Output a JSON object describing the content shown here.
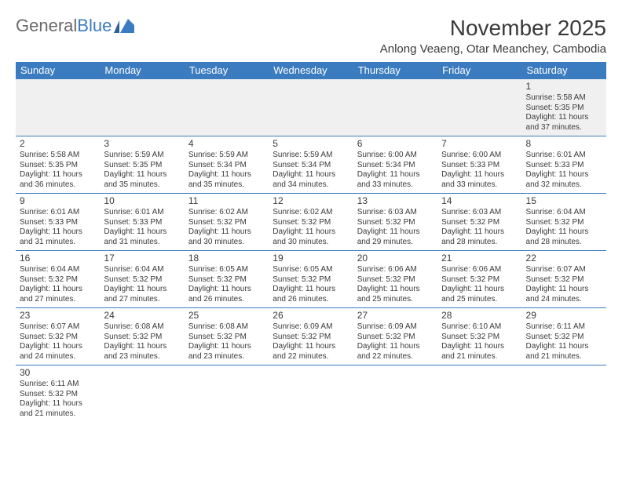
{
  "logo": {
    "text1": "General",
    "text2": "Blue"
  },
  "title": "November 2025",
  "location": "Anlong Veaeng, Otar Meanchey, Cambodia",
  "weekdays": [
    "Sunday",
    "Monday",
    "Tuesday",
    "Wednesday",
    "Thursday",
    "Friday",
    "Saturday"
  ],
  "colors": {
    "header_bg": "#3b7bbf",
    "header_text": "#ffffff",
    "border": "#3b7bbf",
    "first_row_bg": "#f0f0f0",
    "text": "#3a3a3a",
    "logo_gray": "#6a6a6a"
  },
  "weeks": [
    [
      null,
      null,
      null,
      null,
      null,
      null,
      {
        "d": "1",
        "sr": "5:58 AM",
        "ss": "5:35 PM",
        "dl": "11 hours and 37 minutes."
      }
    ],
    [
      {
        "d": "2",
        "sr": "5:58 AM",
        "ss": "5:35 PM",
        "dl": "11 hours and 36 minutes."
      },
      {
        "d": "3",
        "sr": "5:59 AM",
        "ss": "5:35 PM",
        "dl": "11 hours and 35 minutes."
      },
      {
        "d": "4",
        "sr": "5:59 AM",
        "ss": "5:34 PM",
        "dl": "11 hours and 35 minutes."
      },
      {
        "d": "5",
        "sr": "5:59 AM",
        "ss": "5:34 PM",
        "dl": "11 hours and 34 minutes."
      },
      {
        "d": "6",
        "sr": "6:00 AM",
        "ss": "5:34 PM",
        "dl": "11 hours and 33 minutes."
      },
      {
        "d": "7",
        "sr": "6:00 AM",
        "ss": "5:33 PM",
        "dl": "11 hours and 33 minutes."
      },
      {
        "d": "8",
        "sr": "6:01 AM",
        "ss": "5:33 PM",
        "dl": "11 hours and 32 minutes."
      }
    ],
    [
      {
        "d": "9",
        "sr": "6:01 AM",
        "ss": "5:33 PM",
        "dl": "11 hours and 31 minutes."
      },
      {
        "d": "10",
        "sr": "6:01 AM",
        "ss": "5:33 PM",
        "dl": "11 hours and 31 minutes."
      },
      {
        "d": "11",
        "sr": "6:02 AM",
        "ss": "5:32 PM",
        "dl": "11 hours and 30 minutes."
      },
      {
        "d": "12",
        "sr": "6:02 AM",
        "ss": "5:32 PM",
        "dl": "11 hours and 30 minutes."
      },
      {
        "d": "13",
        "sr": "6:03 AM",
        "ss": "5:32 PM",
        "dl": "11 hours and 29 minutes."
      },
      {
        "d": "14",
        "sr": "6:03 AM",
        "ss": "5:32 PM",
        "dl": "11 hours and 28 minutes."
      },
      {
        "d": "15",
        "sr": "6:04 AM",
        "ss": "5:32 PM",
        "dl": "11 hours and 28 minutes."
      }
    ],
    [
      {
        "d": "16",
        "sr": "6:04 AM",
        "ss": "5:32 PM",
        "dl": "11 hours and 27 minutes."
      },
      {
        "d": "17",
        "sr": "6:04 AM",
        "ss": "5:32 PM",
        "dl": "11 hours and 27 minutes."
      },
      {
        "d": "18",
        "sr": "6:05 AM",
        "ss": "5:32 PM",
        "dl": "11 hours and 26 minutes."
      },
      {
        "d": "19",
        "sr": "6:05 AM",
        "ss": "5:32 PM",
        "dl": "11 hours and 26 minutes."
      },
      {
        "d": "20",
        "sr": "6:06 AM",
        "ss": "5:32 PM",
        "dl": "11 hours and 25 minutes."
      },
      {
        "d": "21",
        "sr": "6:06 AM",
        "ss": "5:32 PM",
        "dl": "11 hours and 25 minutes."
      },
      {
        "d": "22",
        "sr": "6:07 AM",
        "ss": "5:32 PM",
        "dl": "11 hours and 24 minutes."
      }
    ],
    [
      {
        "d": "23",
        "sr": "6:07 AM",
        "ss": "5:32 PM",
        "dl": "11 hours and 24 minutes."
      },
      {
        "d": "24",
        "sr": "6:08 AM",
        "ss": "5:32 PM",
        "dl": "11 hours and 23 minutes."
      },
      {
        "d": "25",
        "sr": "6:08 AM",
        "ss": "5:32 PM",
        "dl": "11 hours and 23 minutes."
      },
      {
        "d": "26",
        "sr": "6:09 AM",
        "ss": "5:32 PM",
        "dl": "11 hours and 22 minutes."
      },
      {
        "d": "27",
        "sr": "6:09 AM",
        "ss": "5:32 PM",
        "dl": "11 hours and 22 minutes."
      },
      {
        "d": "28",
        "sr": "6:10 AM",
        "ss": "5:32 PM",
        "dl": "11 hours and 21 minutes."
      },
      {
        "d": "29",
        "sr": "6:11 AM",
        "ss": "5:32 PM",
        "dl": "11 hours and 21 minutes."
      }
    ],
    [
      {
        "d": "30",
        "sr": "6:11 AM",
        "ss": "5:32 PM",
        "dl": "11 hours and 21 minutes."
      },
      null,
      null,
      null,
      null,
      null,
      null
    ]
  ],
  "labels": {
    "sunrise": "Sunrise: ",
    "sunset": "Sunset: ",
    "daylight": "Daylight: "
  }
}
